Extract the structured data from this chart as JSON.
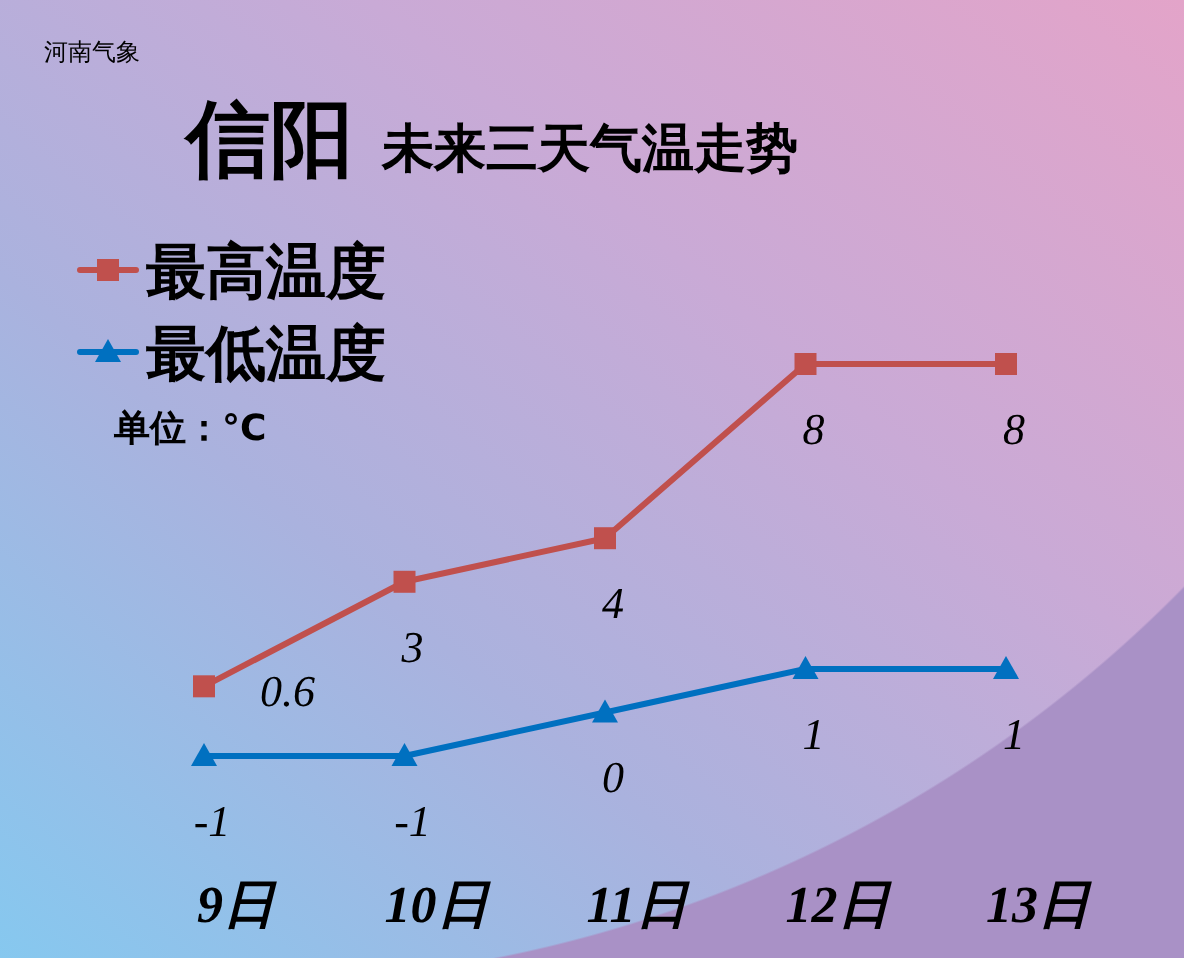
{
  "chart_data": {
    "type": "line",
    "title": "信阳",
    "subtitle": "未来三天气温走势",
    "categories": [
      "9日",
      "10日",
      "11日",
      "12日",
      "13日"
    ],
    "series": [
      {
        "name": "最高温度",
        "color": "#c0504d",
        "marker": "square",
        "values": [
          0.6,
          3,
          4,
          8,
          8
        ]
      },
      {
        "name": "最低温度",
        "color": "#0070c0",
        "marker": "triangle",
        "values": [
          -1,
          -1,
          0,
          1,
          1
        ]
      }
    ],
    "data_labels": true,
    "legend": "top left",
    "annotations": [
      "河南气象",
      "单位：°C"
    ]
  }
}
